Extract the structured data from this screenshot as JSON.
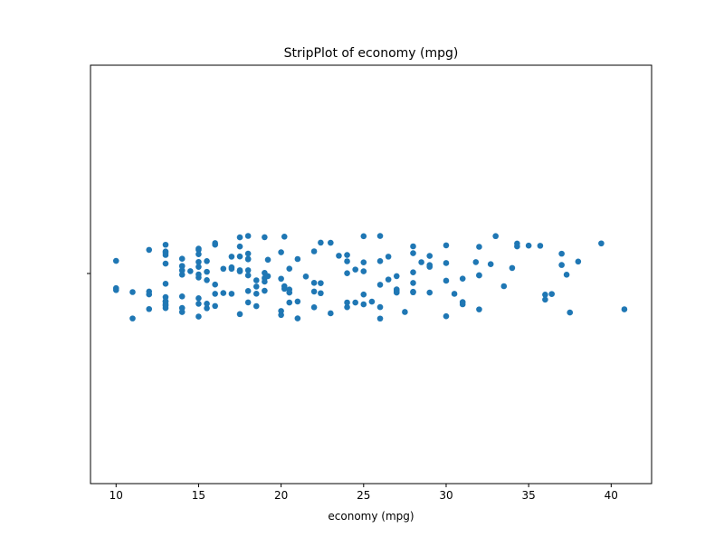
{
  "chart_data": {
    "type": "strip",
    "title": "StripPlot of economy (mpg)",
    "xlabel": "economy (mpg)",
    "categories": [
      null
    ],
    "color": "#1f77b4",
    "xlim": [
      8.45,
      42.45
    ],
    "xticks": [
      10,
      15,
      20,
      25,
      30,
      35,
      40
    ],
    "values": [
      10,
      10,
      10,
      11,
      11,
      12,
      12,
      12,
      12,
      13,
      13,
      13,
      13,
      13,
      13,
      13,
      13,
      13,
      13,
      13,
      13,
      14,
      14,
      14,
      14,
      14,
      14,
      14,
      14,
      14.5,
      15,
      15,
      15,
      15,
      15,
      15,
      15,
      15,
      15,
      15,
      15.5,
      15.5,
      15.5,
      15.5,
      15.5,
      16,
      16,
      16,
      16,
      16,
      16.5,
      16.5,
      17,
      17,
      17,
      17,
      17.5,
      17.5,
      17.5,
      17.5,
      17.5,
      17.5,
      18,
      18,
      18,
      18,
      18,
      18,
      18,
      18,
      18.5,
      18.5,
      18.5,
      18.5,
      19,
      19,
      19,
      19,
      19,
      19.2,
      19.2,
      20,
      20,
      20,
      20,
      20.2,
      20.2,
      20.2,
      20.5,
      20.5,
      20.5,
      20.5,
      21,
      21,
      21,
      21.5,
      22,
      22,
      22,
      22,
      22.4,
      22.4,
      22.4,
      23,
      23,
      23.5,
      24,
      24,
      24,
      24,
      24,
      24.5,
      24.5,
      25,
      25,
      25,
      25,
      25,
      25.5,
      26,
      26,
      26,
      26,
      26,
      26.5,
      26.5,
      27,
      27,
      27,
      27,
      27,
      27.5,
      28,
      28,
      28,
      28,
      28,
      28,
      28.5,
      29,
      29,
      29,
      29,
      30,
      30,
      30,
      30,
      30.5,
      31,
      31,
      31,
      31.8,
      32,
      32,
      32,
      32,
      32.7,
      33,
      33.5,
      34,
      34.3,
      34.3,
      35,
      35.7,
      36,
      36,
      36.4,
      37,
      37,
      37.3,
      37.5,
      38,
      39.4,
      40.8
    ]
  }
}
